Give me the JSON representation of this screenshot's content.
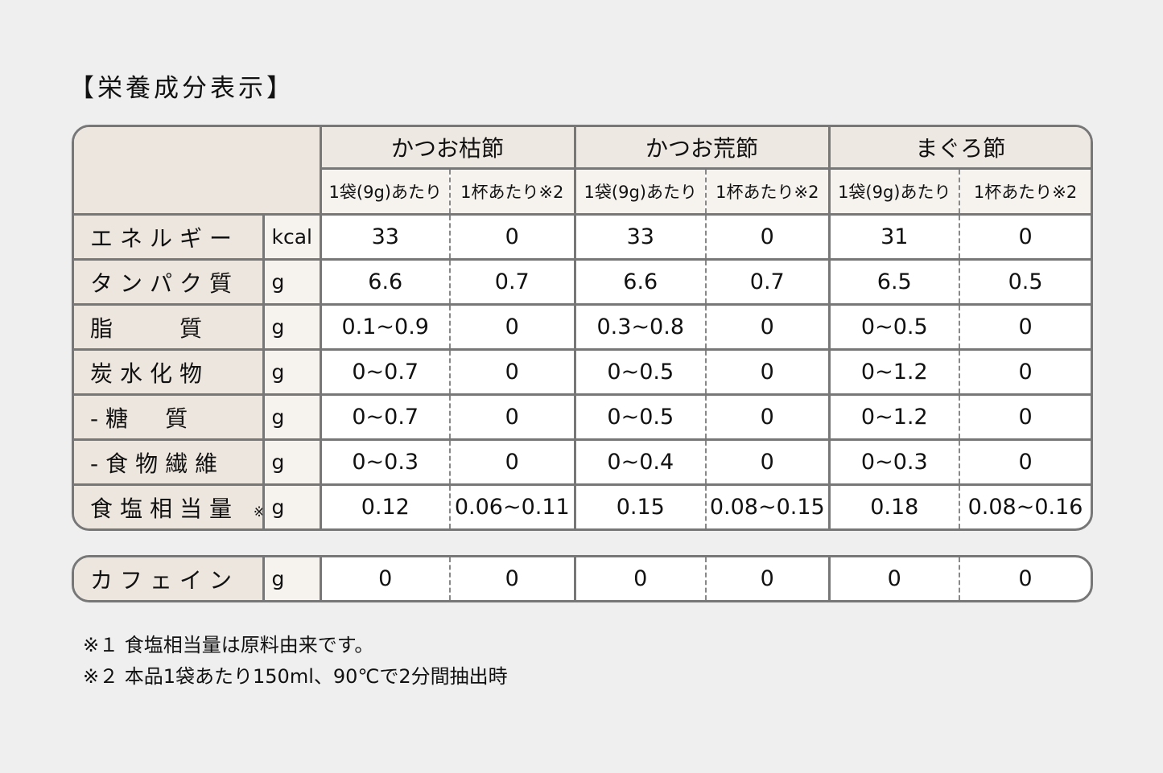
{
  "title": "【栄養成分表示】",
  "products": [
    "かつお枯節",
    "かつお荒節",
    "まぐろ節"
  ],
  "sub_headers": [
    "1袋(9g)あたり",
    "1杯あたり※2"
  ],
  "rows": [
    {
      "label": "エネルギー",
      "unit": "kcal",
      "values": [
        "33",
        "0",
        "33",
        "0",
        "31",
        "0"
      ]
    },
    {
      "label": "タンパク質",
      "unit": "g",
      "values": [
        "6.6",
        "0.7",
        "6.6",
        "0.7",
        "6.5",
        "0.5"
      ]
    },
    {
      "label": "脂　　質",
      "unit": "g",
      "values": [
        "0.1~0.9",
        "0",
        "0.3~0.8",
        "0",
        "0~0.5",
        "0"
      ]
    },
    {
      "label": "炭水化物",
      "unit": "g",
      "values": [
        "0~0.7",
        "0",
        "0~0.5",
        "0",
        "0~1.2",
        "0"
      ]
    },
    {
      "label": "-糖　質",
      "unit": "g",
      "values": [
        "0~0.7",
        "0",
        "0~0.5",
        "0",
        "0~1.2",
        "0"
      ]
    },
    {
      "label": "-食物繊維",
      "unit": "g",
      "values": [
        "0~0.3",
        "0",
        "0~0.4",
        "0",
        "0~0.3",
        "0"
      ]
    },
    {
      "label": "食塩相当量",
      "note": "※1",
      "unit": "g",
      "values": [
        "0.12",
        "0.06~0.11",
        "0.15",
        "0.08~0.15",
        "0.18",
        "0.08~0.16"
      ]
    }
  ],
  "caffeine": {
    "label": "カフェイン",
    "unit": "g",
    "values": [
      "0",
      "0",
      "0",
      "0",
      "0",
      "0"
    ]
  },
  "notes": [
    "※１ 食塩相当量は原料由来です。",
    "※２ 本品1袋あたり150ml、90℃で2分間抽出時"
  ]
}
